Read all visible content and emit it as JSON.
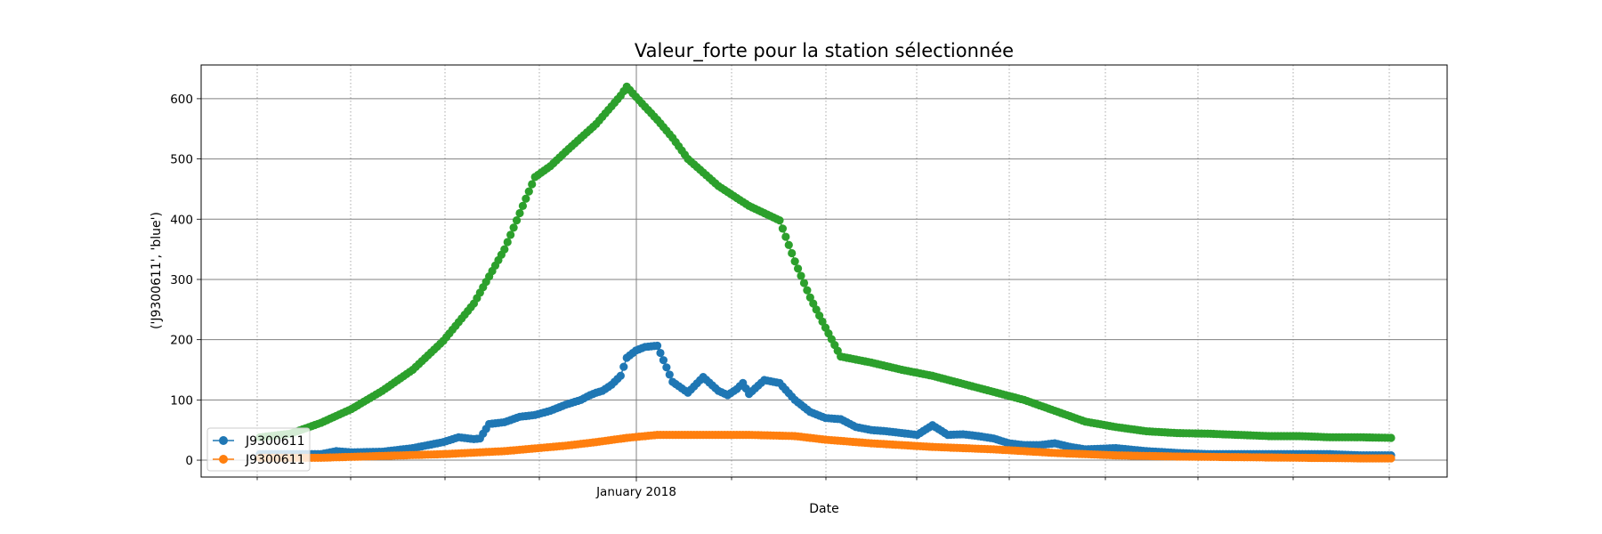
{
  "chart_data": {
    "type": "line",
    "title": "Valeur_forte pour la station sélectionnée",
    "xlabel": "Date",
    "ylabel": "('J9300611', 'blue')",
    "ylim": [
      -28,
      656
    ],
    "y_ticks": [
      0,
      100,
      200,
      300,
      400,
      500,
      600
    ],
    "x_tick_labels": [
      "January 2018"
    ],
    "grid": true,
    "legend_position": "lower-left",
    "markers": "circle",
    "series": [
      {
        "name": "J9300611",
        "color": "#1f77b4",
        "x": [
          0,
          10,
          20,
          25,
          30,
          40,
          50,
          60,
          65,
          70,
          72,
          75,
          80,
          85,
          90,
          95,
          100,
          105,
          108,
          110,
          112,
          115,
          118,
          120,
          123,
          126,
          130,
          135,
          140,
          145,
          150,
          153,
          156,
          158,
          160,
          165,
          170,
          175,
          180,
          185,
          190,
          195,
          200,
          205,
          210,
          215,
          220,
          225,
          230,
          235,
          240,
          245,
          250,
          255,
          260,
          265,
          270,
          280,
          290,
          300,
          310,
          320,
          330,
          340,
          350,
          360,
          370
        ],
        "values": [
          10,
          10,
          10,
          15,
          13,
          14,
          20,
          30,
          38,
          35,
          36,
          60,
          63,
          72,
          75,
          82,
          92,
          100,
          108,
          112,
          115,
          125,
          140,
          170,
          182,
          188,
          190,
          130,
          112,
          138,
          115,
          108,
          118,
          128,
          110,
          133,
          128,
          100,
          80,
          70,
          68,
          55,
          50,
          48,
          45,
          42,
          58,
          42,
          43,
          40,
          36,
          28,
          25,
          25,
          28,
          22,
          18,
          20,
          15,
          12,
          10,
          10,
          10,
          10,
          10,
          8,
          8
        ]
      },
      {
        "name": "J9300611",
        "color": "#ff7f0e",
        "x": [
          0,
          20,
          40,
          60,
          80,
          100,
          110,
          120,
          130,
          140,
          150,
          160,
          175,
          185,
          200,
          220,
          240,
          260,
          280,
          300,
          320,
          340,
          360,
          370
        ],
        "values": [
          4,
          4,
          7,
          10,
          15,
          24,
          30,
          37,
          42,
          42,
          42,
          42,
          40,
          34,
          28,
          22,
          18,
          12,
          8,
          6,
          5,
          4,
          3,
          3
        ]
      },
      {
        "name": "",
        "color": "#2ca02c",
        "x": [
          0,
          10,
          20,
          30,
          40,
          50,
          60,
          70,
          80,
          90,
          95,
          100,
          110,
          118,
          120,
          125,
          130,
          135,
          140,
          150,
          160,
          170,
          175,
          180,
          185,
          190,
          200,
          210,
          220,
          235,
          250,
          260,
          270,
          280,
          290,
          300,
          310,
          320,
          330,
          340,
          350,
          360,
          370
        ],
        "values": [
          38,
          44,
          62,
          85,
          115,
          150,
          198,
          260,
          350,
          470,
          488,
          512,
          558,
          605,
          620,
          592,
          565,
          535,
          500,
          455,
          422,
          398,
          330,
          270,
          220,
          172,
          162,
          150,
          140,
          120,
          100,
          82,
          64,
          55,
          48,
          45,
          44,
          42,
          40,
          40,
          38,
          38,
          37
        ]
      }
    ]
  }
}
